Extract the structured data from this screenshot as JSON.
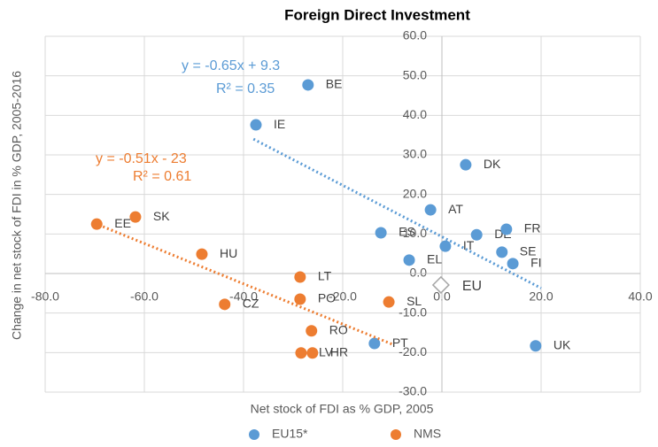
{
  "chart_data": {
    "type": "scatter",
    "title": "Foreign Direct Investment",
    "x_label": "Net stock of FDI as % GDP, 2005",
    "y_label": "Change in net stock of FDI in % GDP, 2005-2016",
    "xlim": [
      -80,
      40
    ],
    "ylim": [
      -30,
      60
    ],
    "xticks": [
      {
        "value": -80,
        "label": "-80.0"
      },
      {
        "value": -60,
        "label": "-60.0"
      },
      {
        "value": -40,
        "label": "-40.0"
      },
      {
        "value": -20,
        "label": "-20.0"
      },
      {
        "value": 0,
        "label": "0.0"
      },
      {
        "value": 20,
        "label": "20.0"
      },
      {
        "value": 40,
        "label": "40.0"
      }
    ],
    "yticks": [
      {
        "value": -30,
        "label": "-30.0"
      },
      {
        "value": -20,
        "label": "-20.0"
      },
      {
        "value": -10,
        "label": "-10.0"
      },
      {
        "value": 0,
        "label": "0.0"
      },
      {
        "value": 10,
        "label": "10.0"
      },
      {
        "value": 20,
        "label": "20.0"
      },
      {
        "value": 30,
        "label": "30.0"
      },
      {
        "value": 40,
        "label": "40.0"
      },
      {
        "value": 50,
        "label": "50.0"
      },
      {
        "value": 60,
        "label": "60.0"
      }
    ],
    "grid": true,
    "legend": "bottom",
    "series": [
      {
        "name": "EU15*",
        "color": "#5b9bd5",
        "labels": [
          "BE",
          "IE",
          "DK",
          "AT",
          "ES",
          "DE",
          "FR",
          "IT",
          "SE",
          "EL",
          "FI",
          "PT",
          "UK"
        ],
        "x": [
          -27,
          -37.5,
          4.8,
          -2.3,
          -12.3,
          7,
          13,
          0.7,
          12.1,
          -6.6,
          14.3,
          -13.6,
          18.9
        ],
        "values": [
          47.7,
          37.6,
          27.5,
          16.1,
          10.3,
          9.8,
          11.2,
          6.9,
          5.4,
          3.4,
          2.5,
          -17.7,
          -18.3
        ],
        "trendline": {
          "equation": "y = -0.65x + 9.3",
          "r2_label": "R² = 0.35",
          "slope": -0.65,
          "intercept": 9.3,
          "x_start": -38,
          "x_end": 20
        }
      },
      {
        "name": "NMS",
        "color": "#ed7d31",
        "labels": [
          "EE",
          "SK",
          "HU",
          "LT",
          "PO",
          "CZ",
          "SL",
          "RO",
          "LV",
          "HR"
        ],
        "x": [
          -69.6,
          -61.8,
          -48.4,
          -28.6,
          -28.6,
          -43.8,
          -10.7,
          -26.3,
          -28.4,
          -26.1
        ],
        "values": [
          12.5,
          14.3,
          4.9,
          -0.9,
          -6.5,
          -7.8,
          -7.2,
          -14.5,
          -20.1,
          -20.1
        ],
        "trendline": {
          "equation": "y = -0.51x - 23",
          "r2_label": "R² = 0.61",
          "slope": -0.51,
          "intercept": -23,
          "x_start": -70,
          "x_end": -10
        }
      }
    ],
    "highlight": {
      "label": "EU",
      "x": -0.2,
      "y": -2.9,
      "color": "#a6a6a6"
    }
  }
}
